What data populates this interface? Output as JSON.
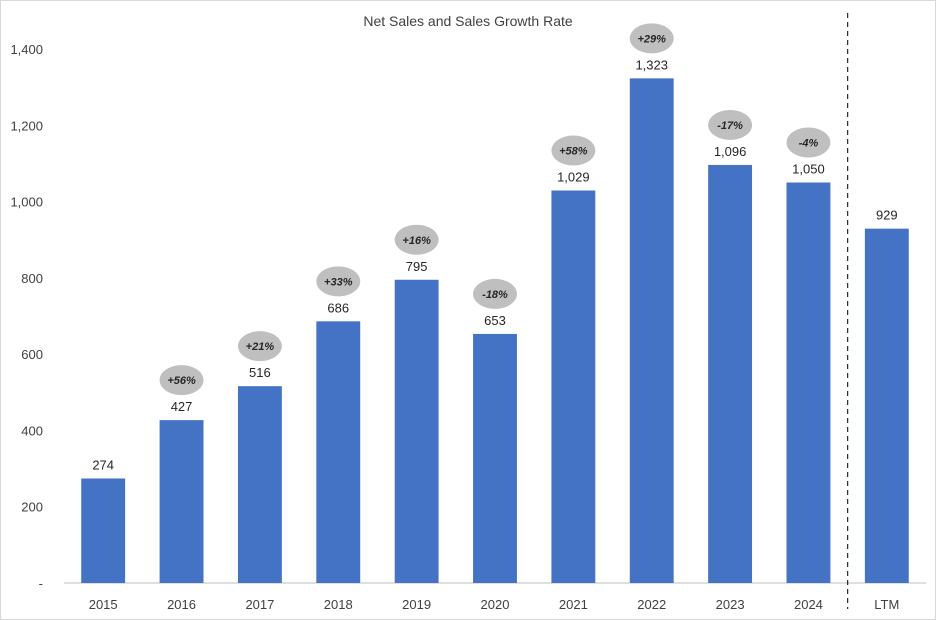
{
  "chart_data": {
    "type": "bar",
    "title": "Net Sales and Sales Growth Rate",
    "xlabel": "",
    "ylabel": "",
    "ylim": [
      0,
      1400
    ],
    "yticks": [
      0,
      200,
      400,
      600,
      800,
      1000,
      1200,
      1400
    ],
    "ytick_labels": [
      "-",
      "200",
      "400",
      "600",
      "800",
      "1,000",
      "1,200",
      "1,400"
    ],
    "categories": [
      "2015",
      "2016",
      "2017",
      "2018",
      "2019",
      "2020",
      "2021",
      "2022",
      "2023",
      "2024",
      "LTM"
    ],
    "values": [
      274,
      427,
      516,
      686,
      795,
      653,
      1029,
      1323,
      1096,
      1050,
      929
    ],
    "value_labels": [
      "274",
      "427",
      "516",
      "686",
      "795",
      "653",
      "1,029",
      "1,323",
      "1,096",
      "1,050",
      "929"
    ],
    "growth_labels": [
      "",
      "+56%",
      "+21%",
      "+33%",
      "+16%",
      "-18%",
      "+58%",
      "+29%",
      "-17%",
      "-4%",
      ""
    ],
    "separator_before": "LTM",
    "grid": false,
    "legend": "none",
    "colors": {
      "bar": "#4472C4",
      "bubble": "#BFBFBF",
      "axis": "#BFBFBF",
      "separator": "#262626"
    }
  }
}
